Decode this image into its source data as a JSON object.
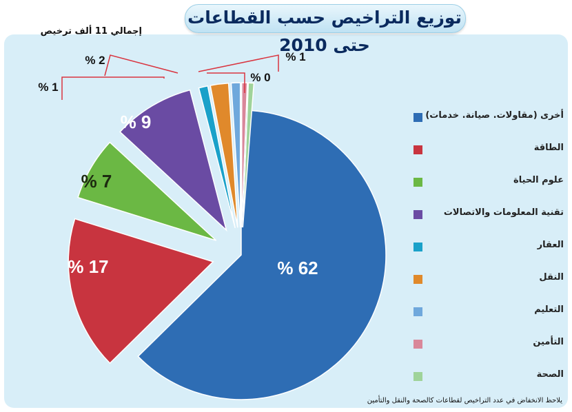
{
  "title": "توزيع التراخيص حسب القطاعات حتى 2010",
  "total_note": "إجمالي 11 ألف ترخيص",
  "footnote": "يلاحظ الانخفاض في عدد التراخيص لقطاعات كالصحة والنقل والتأمين",
  "chart_data": {
    "type": "pie",
    "title": "توزيع التراخيص حسب القطاعات حتى 2010",
    "unit": "%",
    "slices": [
      {
        "name": "أخرى (مقاولات، صيانة، خدمات)",
        "value": 62,
        "label": "% 62",
        "color": "#2e6db4"
      },
      {
        "name": "الطاقة",
        "value": 17,
        "label": "% 17",
        "color": "#c8343f"
      },
      {
        "name": "علوم الحياة",
        "value": 7,
        "label": "% 7",
        "color": "#6bb844"
      },
      {
        "name": "تقنية المعلومات والاتصالات",
        "value": 9,
        "label": "% 9",
        "color": "#6a4ba3"
      },
      {
        "name": "العقار",
        "value": 1,
        "label": "% 1",
        "color": "#1aa1c9"
      },
      {
        "name": "النقل",
        "value": 2,
        "label": "% 2",
        "color": "#e0892b"
      },
      {
        "name": "التعليم",
        "value": 1,
        "label": "% 1",
        "color": "#6fa8dc"
      },
      {
        "name": "التأمين",
        "value": 0,
        "label": "% 0",
        "color": "#d9879a"
      },
      {
        "name": "الصحة",
        "value": 0,
        "label": "",
        "color": "#9fd39a"
      }
    ],
    "legend": [
      {
        "label": "أخرى (مقاولات. صيانة. خدمات)",
        "color": "#2e6db4"
      },
      {
        "label": "الطاقة",
        "color": "#c8343f"
      },
      {
        "label": "علوم الحياة",
        "color": "#6bb844"
      },
      {
        "label": "تقنية المعلومات والاتصالات",
        "color": "#6a4ba3"
      },
      {
        "label": "العقار",
        "color": "#1aa1c9"
      },
      {
        "label": "النقل",
        "color": "#e0892b"
      },
      {
        "label": "التعليم",
        "color": "#6fa8dc"
      },
      {
        "label": "التأمين",
        "color": "#d9879a"
      },
      {
        "label": "الصحة",
        "color": "#9fd39a"
      }
    ]
  }
}
